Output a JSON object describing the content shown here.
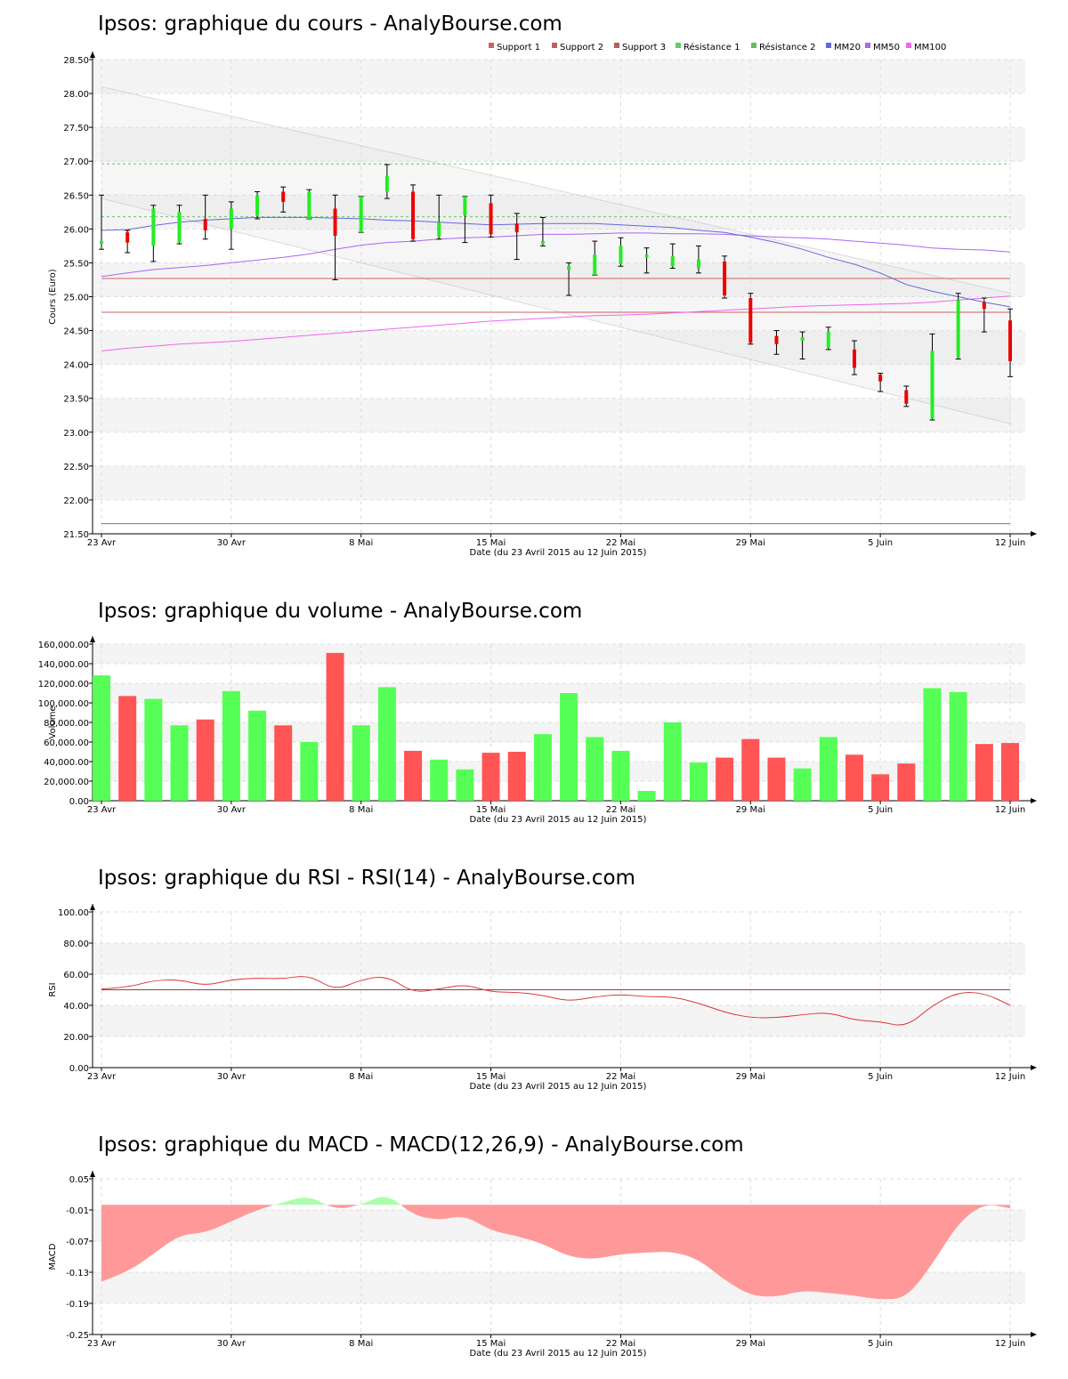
{
  "colors": {
    "up": "#55ff55",
    "down": "#ff5555",
    "candle_up": "#22ee22",
    "candle_down": "#ee0000",
    "band": "#f4f4f4",
    "grid": "#dddddd",
    "support": "#d06060",
    "resistance": "#66cc66",
    "mm20": "#6666dd",
    "mm50": "#aa66ee",
    "mm100": "#ee66ee",
    "rsi": "#dd3333",
    "rsi_ref": "#884444",
    "macd_pos": "#aaffaa",
    "macd_neg": "#ff9999"
  },
  "x_axis": {
    "label": "Date (du 23 Avril 2015 au 12 Juin 2015)",
    "ticks": [
      {
        "label": "23 Avr",
        "i": 0
      },
      {
        "label": "30 Avr",
        "i": 5
      },
      {
        "label": "8 Mai",
        "i": 10
      },
      {
        "label": "15 Mai",
        "i": 15
      },
      {
        "label": "22 Mai",
        "i": 20
      },
      {
        "label": "29 Mai",
        "i": 25
      },
      {
        "label": "5 Juin",
        "i": 30
      },
      {
        "label": "12 Juin",
        "i": 35
      }
    ]
  },
  "chart_data": [
    {
      "type": "candlestick",
      "title": "Ipsos: graphique du cours - AnalyBourse.com",
      "ylabel": "Cours (Euro)",
      "ylim": [
        21.5,
        28.5
      ],
      "yticks": [
        "21.50",
        "22.00",
        "22.50",
        "23.00",
        "23.50",
        "24.00",
        "24.50",
        "25.00",
        "25.50",
        "26.00",
        "26.50",
        "27.00",
        "27.50",
        "28.00",
        "28.50"
      ],
      "legend": [
        "Support 1",
        "Support 2",
        "Support 3",
        "Résistance 1",
        "Résistance 2",
        "MM20",
        "MM50",
        "MM100"
      ],
      "candles": [
        {
          "o": 25.78,
          "h": 26.5,
          "l": 25.7,
          "c": 25.82
        },
        {
          "o": 25.95,
          "h": 25.98,
          "l": 25.65,
          "c": 25.8
        },
        {
          "o": 25.75,
          "h": 26.35,
          "l": 25.52,
          "c": 26.3
        },
        {
          "o": 25.8,
          "h": 26.35,
          "l": 25.78,
          "c": 26.25
        },
        {
          "o": 26.15,
          "h": 26.5,
          "l": 25.85,
          "c": 25.98
        },
        {
          "o": 26.0,
          "h": 26.4,
          "l": 25.7,
          "c": 26.3
        },
        {
          "o": 26.2,
          "h": 26.55,
          "l": 26.15,
          "c": 26.5
        },
        {
          "o": 26.55,
          "h": 26.62,
          "l": 26.25,
          "c": 26.4
        },
        {
          "o": 26.15,
          "h": 26.58,
          "l": 26.15,
          "c": 26.55
        },
        {
          "o": 26.3,
          "h": 26.5,
          "l": 25.25,
          "c": 25.9
        },
        {
          "o": 25.95,
          "h": 26.48,
          "l": 25.95,
          "c": 26.48
        },
        {
          "o": 26.55,
          "h": 26.95,
          "l": 26.45,
          "c": 26.78
        },
        {
          "o": 26.55,
          "h": 26.65,
          "l": 25.82,
          "c": 25.85
        },
        {
          "o": 25.88,
          "h": 26.5,
          "l": 25.85,
          "c": 26.1
        },
        {
          "o": 26.2,
          "h": 26.48,
          "l": 25.8,
          "c": 26.48
        },
        {
          "o": 26.38,
          "h": 26.5,
          "l": 25.88,
          "c": 25.92
        },
        {
          "o": 26.08,
          "h": 26.23,
          "l": 25.55,
          "c": 25.95
        },
        {
          "o": 25.78,
          "h": 26.17,
          "l": 25.75,
          "c": 25.82
        },
        {
          "o": 25.4,
          "h": 25.5,
          "l": 25.02,
          "c": 25.45
        },
        {
          "o": 25.32,
          "h": 25.82,
          "l": 25.32,
          "c": 25.62
        },
        {
          "o": 25.48,
          "h": 25.87,
          "l": 25.45,
          "c": 25.75
        },
        {
          "o": 25.58,
          "h": 25.72,
          "l": 25.35,
          "c": 25.62
        },
        {
          "o": 25.45,
          "h": 25.78,
          "l": 25.42,
          "c": 25.6
        },
        {
          "o": 25.42,
          "h": 25.75,
          "l": 25.35,
          "c": 25.55
        },
        {
          "o": 25.52,
          "h": 25.6,
          "l": 24.98,
          "c": 25.02
        },
        {
          "o": 24.98,
          "h": 25.05,
          "l": 24.3,
          "c": 24.32
        },
        {
          "o": 24.42,
          "h": 24.5,
          "l": 24.15,
          "c": 24.3
        },
        {
          "o": 24.35,
          "h": 24.48,
          "l": 24.08,
          "c": 24.4
        },
        {
          "o": 24.25,
          "h": 24.55,
          "l": 24.22,
          "c": 24.48
        },
        {
          "o": 24.22,
          "h": 24.35,
          "l": 23.85,
          "c": 23.95
        },
        {
          "o": 23.85,
          "h": 23.87,
          "l": 23.6,
          "c": 23.75
        },
        {
          "o": 23.62,
          "h": 23.68,
          "l": 23.38,
          "c": 23.42
        },
        {
          "o": 23.2,
          "h": 24.45,
          "l": 23.18,
          "c": 24.2
        },
        {
          "o": 24.1,
          "h": 25.05,
          "l": 24.08,
          "c": 24.95
        },
        {
          "o": 24.92,
          "h": 24.98,
          "l": 24.48,
          "c": 24.82
        },
        {
          "o": 24.65,
          "h": 24.82,
          "l": 23.82,
          "c": 24.05
        }
      ],
      "support_1": 24.77,
      "support_2": 25.27,
      "resistance_1": 26.18,
      "resistance_2": 26.96,
      "baseline": 21.65,
      "channel_upper": [
        28.1,
        25.05
      ],
      "channel_lower": [
        26.45,
        23.12
      ],
      "mm20": [
        25.98,
        25.99,
        26.05,
        26.1,
        26.13,
        26.15,
        26.17,
        26.17,
        26.17,
        26.16,
        26.15,
        26.13,
        26.12,
        26.1,
        26.08,
        26.06,
        26.07,
        26.08,
        26.08,
        26.08,
        26.06,
        26.04,
        26.02,
        25.98,
        25.95,
        25.88,
        25.8,
        25.7,
        25.58,
        25.48,
        25.35,
        25.18,
        25.08,
        25.0,
        24.92,
        24.85
      ],
      "mm50": [
        25.3,
        25.35,
        25.4,
        25.43,
        25.46,
        25.5,
        25.54,
        25.58,
        25.63,
        25.7,
        25.76,
        25.8,
        25.82,
        25.85,
        25.87,
        25.88,
        25.9,
        25.92,
        25.92,
        25.93,
        25.94,
        25.94,
        25.93,
        25.93,
        25.92,
        25.9,
        25.88,
        25.87,
        25.85,
        25.82,
        25.79,
        25.76,
        25.72,
        25.7,
        25.69,
        25.66
      ],
      "mm100": [
        24.2,
        24.24,
        24.27,
        24.3,
        24.32,
        24.34,
        24.37,
        24.4,
        24.43,
        24.46,
        24.49,
        24.52,
        24.55,
        24.58,
        24.61,
        24.64,
        24.66,
        24.68,
        24.7,
        24.72,
        24.73,
        24.74,
        24.76,
        24.78,
        24.8,
        24.82,
        24.84,
        24.86,
        24.87,
        24.88,
        24.89,
        24.9,
        24.92,
        24.95,
        24.98,
        25.01
      ]
    },
    {
      "type": "bar",
      "title": "Ipsos: graphique du volume - AnalyBourse.com",
      "ylabel": "Volume",
      "ylim": [
        0,
        160000
      ],
      "yticks": [
        "0.00",
        "20,000.00",
        "40,000.00",
        "60,000.00",
        "80,000.00",
        "100,000.00",
        "120,000.00",
        "140,000.00",
        "160,000.00"
      ],
      "values": [
        128000,
        107000,
        104000,
        77000,
        83000,
        112000,
        92000,
        77000,
        60000,
        151000,
        77000,
        116000,
        51000,
        42000,
        32000,
        49000,
        50000,
        68000,
        110000,
        65000,
        51000,
        10000,
        80000,
        39000,
        44000,
        63000,
        44000,
        33000,
        65000,
        47000,
        27000,
        38000,
        115000,
        111000,
        58000,
        59000
      ],
      "colors": [
        "up",
        "down",
        "up",
        "up",
        "down",
        "up",
        "up",
        "down",
        "up",
        "down",
        "up",
        "up",
        "down",
        "up",
        "up",
        "down",
        "down",
        "up",
        "up",
        "up",
        "up",
        "up",
        "up",
        "up",
        "down",
        "down",
        "down",
        "up",
        "up",
        "down",
        "down",
        "down",
        "up",
        "up",
        "down",
        "down"
      ]
    },
    {
      "type": "line",
      "title": "Ipsos: graphique du RSI - RSI(14) - AnalyBourse.com",
      "ylabel": "RSI",
      "ylim": [
        0,
        100
      ],
      "yticks": [
        "0.00",
        "20.00",
        "40.00",
        "60.00",
        "80.00",
        "100.00"
      ],
      "reference": 50,
      "values": [
        50.5,
        51.5,
        56,
        56.5,
        52.5,
        56.5,
        57.5,
        57,
        59.5,
        49.5,
        56.5,
        59,
        48,
        50.5,
        53.5,
        48.5,
        48.5,
        46.5,
        42.5,
        45.5,
        47,
        45.5,
        45.5,
        41.5,
        35.5,
        32,
        32,
        34,
        35.5,
        30.5,
        29.5,
        26,
        40,
        48.5,
        48,
        40
      ]
    },
    {
      "type": "area",
      "title": "Ipsos: graphique du MACD - MACD(12,26,9) - AnalyBourse.com",
      "ylabel": "MACD",
      "ylim": [
        -0.25,
        0.05
      ],
      "yticks": [
        "-0.25",
        "-0.19",
        "-0.13",
        "-0.07",
        "-0.01",
        "0.05"
      ],
      "baseline": 0,
      "values": [
        -0.148,
        -0.13,
        -0.095,
        -0.058,
        -0.054,
        -0.032,
        -0.01,
        0.005,
        0.018,
        -0.01,
        0.0,
        0.022,
        -0.02,
        -0.03,
        -0.02,
        -0.05,
        -0.06,
        -0.075,
        -0.1,
        -0.105,
        -0.095,
        -0.092,
        -0.09,
        -0.105,
        -0.145,
        -0.175,
        -0.178,
        -0.165,
        -0.17,
        -0.175,
        -0.183,
        -0.18,
        -0.115,
        -0.035,
        0.003,
        -0.007
      ]
    }
  ]
}
